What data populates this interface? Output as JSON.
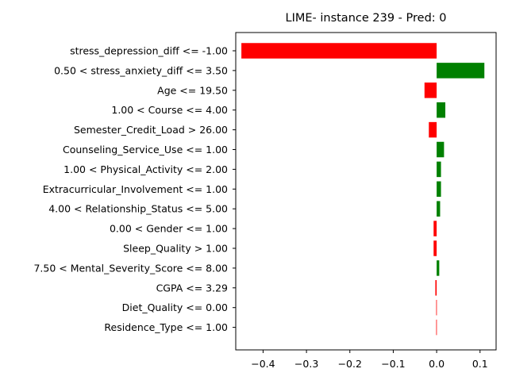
{
  "chart_data": {
    "type": "bar",
    "orientation": "horizontal",
    "title": "LIME- instance 239 - Pred: 0",
    "xlabel": "",
    "ylabel": "",
    "xlim": [
      -0.463,
      0.137
    ],
    "grid": false,
    "legend": "none",
    "x_ticks": [
      {
        "value": -0.4,
        "label": "−0.4"
      },
      {
        "value": -0.3,
        "label": "−0.3"
      },
      {
        "value": -0.2,
        "label": "−0.2"
      },
      {
        "value": -0.1,
        "label": "−0.1"
      },
      {
        "value": 0.0,
        "label": "0.0"
      },
      {
        "value": 0.1,
        "label": "0.1"
      }
    ],
    "categories": [
      "stress_depression_diff <= -1.00",
      "0.50 < stress_anxiety_diff <= 3.50",
      "Age <= 19.50",
      "1.00 < Course <= 4.00",
      "Semester_Credit_Load > 26.00",
      "Counseling_Service_Use <= 1.00",
      "1.00 < Physical_Activity <= 2.00",
      "Extracurricular_Involvement <= 1.00",
      "4.00 < Relationship_Status <= 5.00",
      "0.00 < Gender <= 1.00",
      "Sleep_Quality > 1.00",
      "7.50 < Mental_Severity_Score <= 8.00",
      "CGPA <= 3.29",
      "Diet_Quality <= 0.00",
      "Residence_Type <= 1.00"
    ],
    "values": [
      -0.45,
      0.11,
      -0.028,
      0.02,
      -0.018,
      0.017,
      0.01,
      0.01,
      0.008,
      -0.007,
      -0.007,
      0.006,
      -0.003,
      -0.001,
      -0.001
    ],
    "colors": {
      "positive": "#008000",
      "negative": "#ff0000"
    }
  }
}
